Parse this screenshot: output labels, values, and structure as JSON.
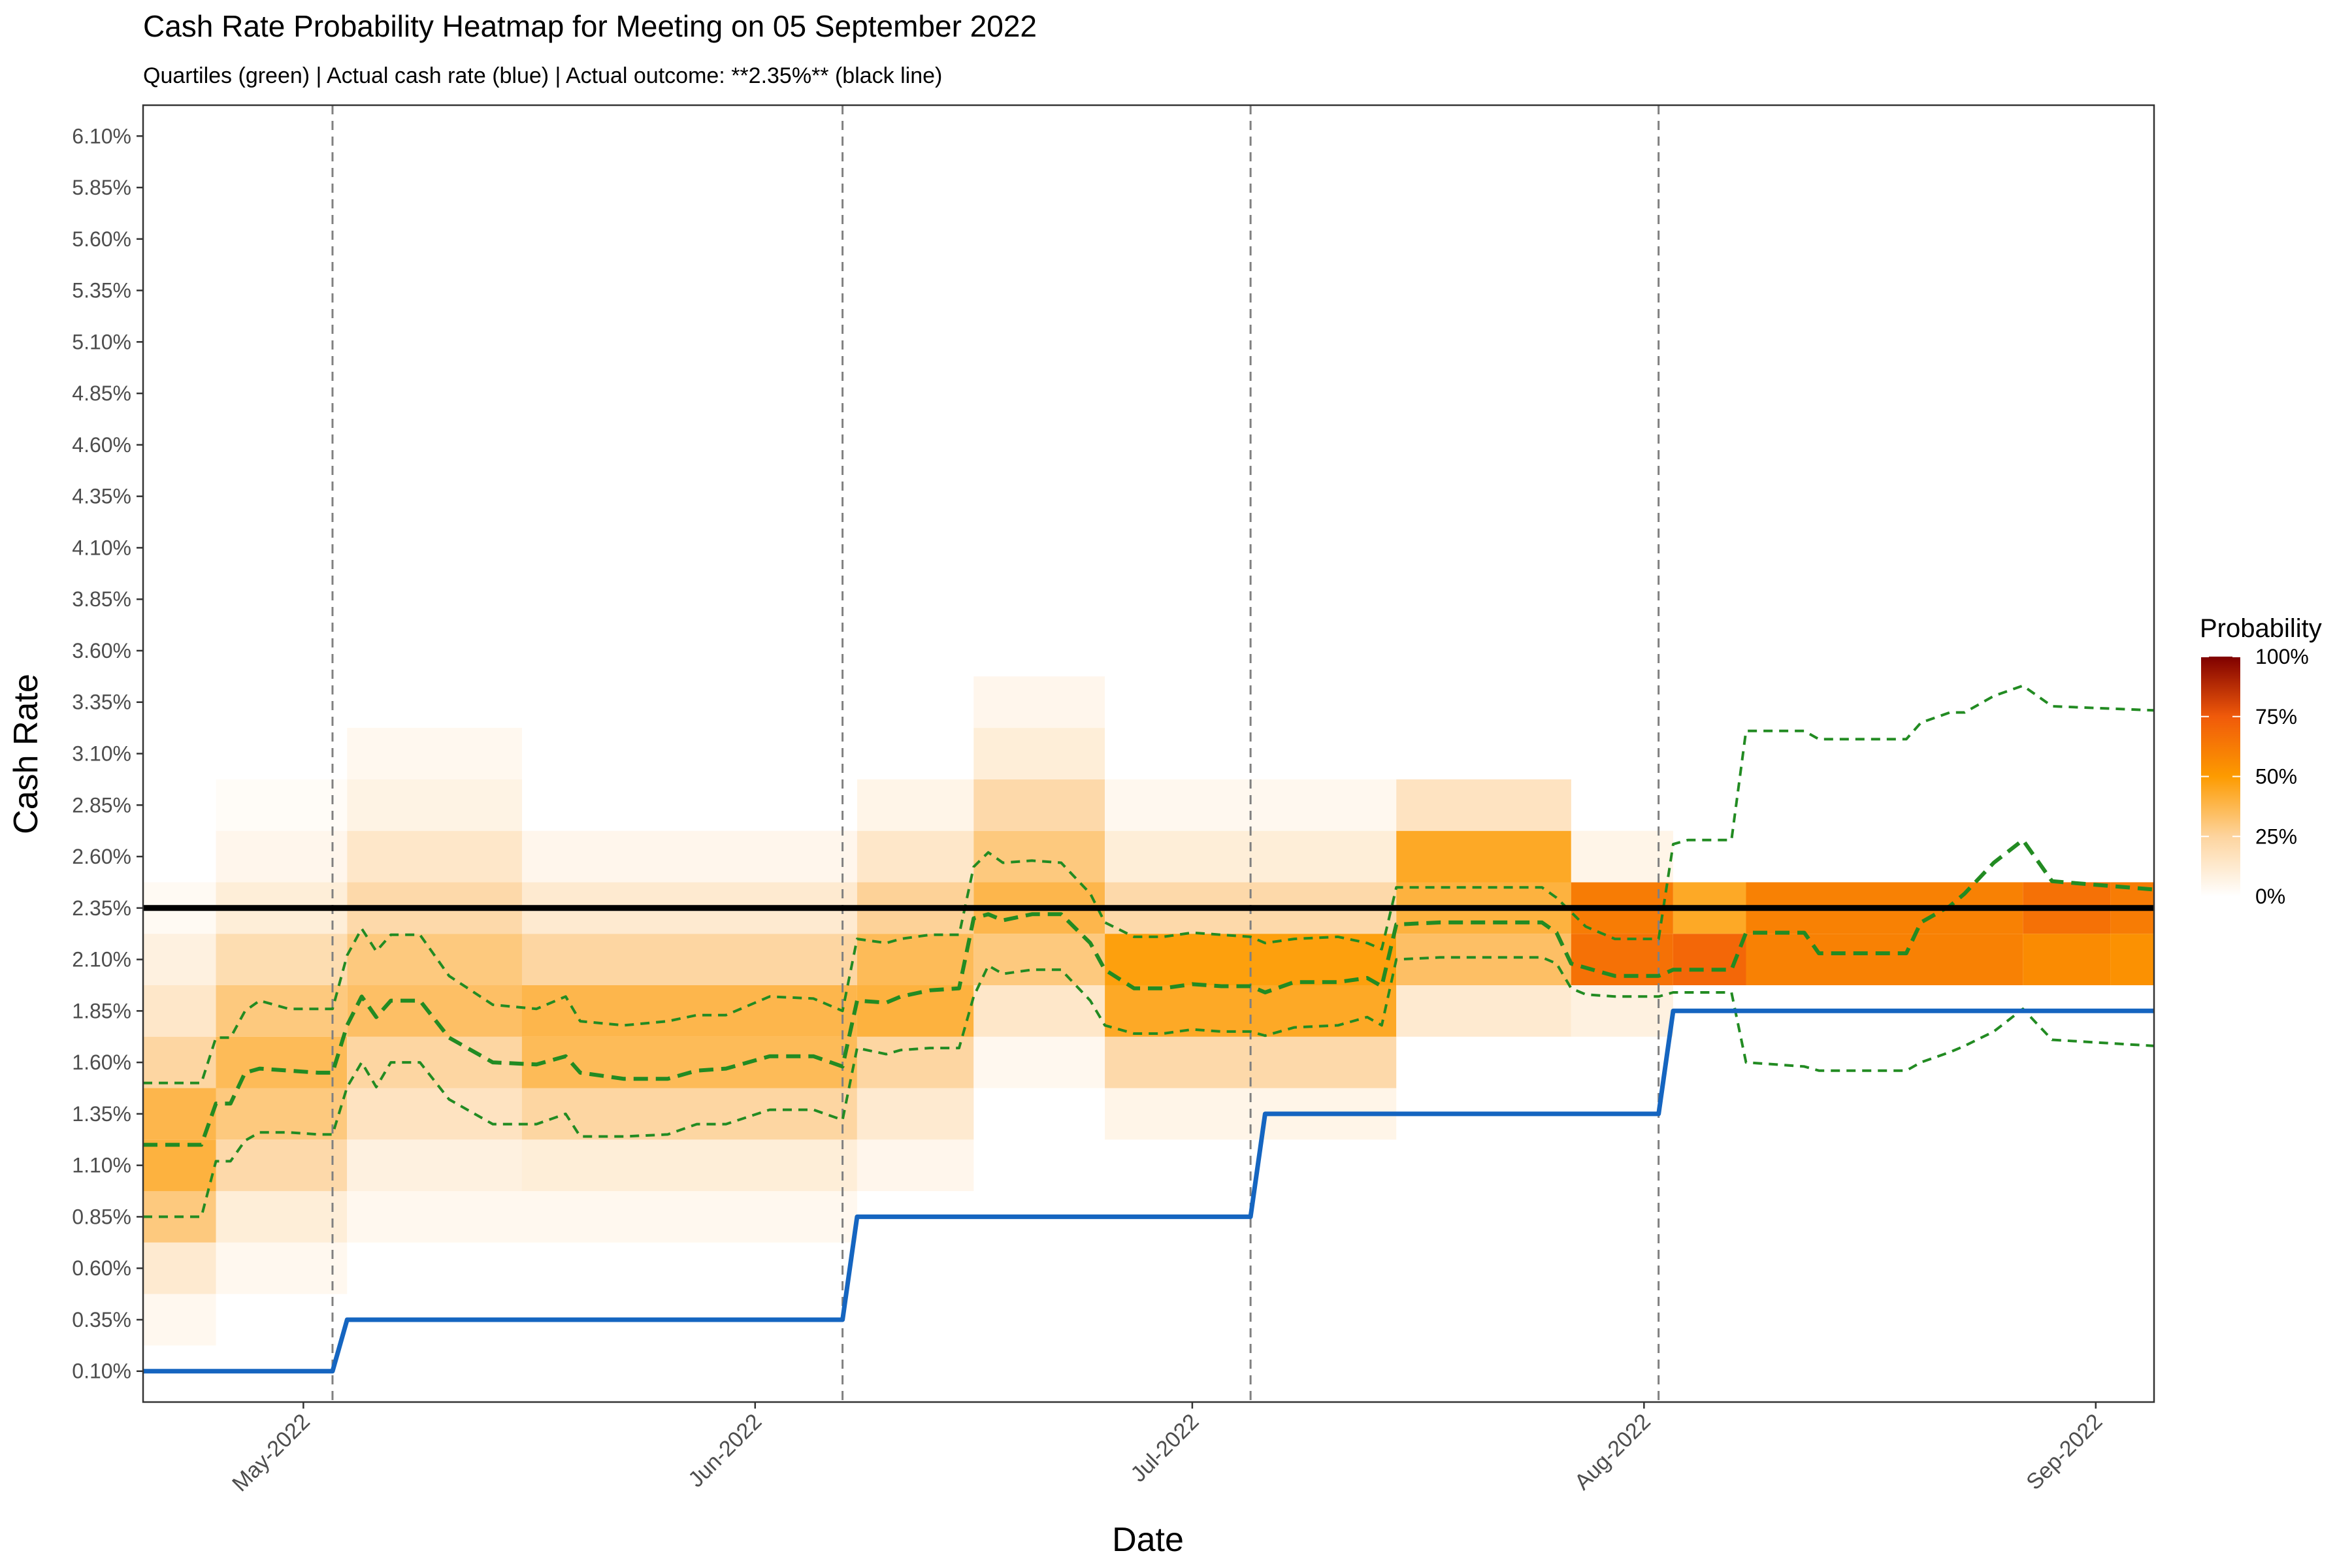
{
  "chart_data": {
    "type": "heatmap",
    "title": "Cash Rate Probability Heatmap for Meeting on 05 September 2022",
    "subtitle": "Quartiles (green) | Actual cash rate (blue) | Actual outcome: **2.35%** (black line)",
    "xlabel": "Date",
    "ylabel": "Cash Rate",
    "x_range": [
      "2022-04-20",
      "2022-09-05"
    ],
    "y_range": [
      -0.05,
      6.25
    ],
    "x_ticks": [
      "2022-05-01",
      "2022-06-01",
      "2022-07-01",
      "2022-08-01",
      "2022-09-01"
    ],
    "x_tick_labels": [
      "May-2022",
      "Jun-2022",
      "Jul-2022",
      "Aug-2022",
      "Sep-2022"
    ],
    "y_ticks": [
      0.1,
      0.35,
      0.6,
      0.85,
      1.1,
      1.35,
      1.6,
      1.85,
      2.1,
      2.35,
      2.6,
      2.85,
      3.1,
      3.35,
      3.6,
      3.85,
      4.1,
      4.35,
      4.6,
      4.85,
      5.1,
      5.35,
      5.6,
      5.85,
      6.1
    ],
    "y_tick_labels": [
      "0.10%",
      "0.35%",
      "0.60%",
      "0.85%",
      "1.10%",
      "1.35%",
      "1.60%",
      "1.85%",
      "2.10%",
      "2.35%",
      "2.60%",
      "2.85%",
      "3.10%",
      "3.35%",
      "3.60%",
      "3.85%",
      "4.10%",
      "4.35%",
      "4.60%",
      "4.85%",
      "5.10%",
      "5.35%",
      "5.60%",
      "5.85%",
      "6.10%"
    ],
    "grid": false,
    "meeting_dates": [
      "2022-05-03",
      "2022-06-07",
      "2022-07-05",
      "2022-08-02"
    ],
    "actual_outcome": 2.35,
    "actual_cash_rate": [
      {
        "date": "2022-04-20",
        "rate": 0.1
      },
      {
        "date": "2022-05-03",
        "rate": 0.1
      },
      {
        "date": "2022-05-04",
        "rate": 0.35
      },
      {
        "date": "2022-06-07",
        "rate": 0.35
      },
      {
        "date": "2022-06-08",
        "rate": 0.85
      },
      {
        "date": "2022-07-05",
        "rate": 0.85
      },
      {
        "date": "2022-07-06",
        "rate": 1.35
      },
      {
        "date": "2022-08-02",
        "rate": 1.35
      },
      {
        "date": "2022-08-03",
        "rate": 1.85
      },
      {
        "date": "2022-09-05",
        "rate": 1.85
      }
    ],
    "quartiles": [
      {
        "date": "2022-04-20",
        "q25": 0.85,
        "median": 1.2,
        "q75": 1.5
      },
      {
        "date": "2022-04-24",
        "q25": 0.85,
        "median": 1.2,
        "q75": 1.5
      },
      {
        "date": "2022-04-25",
        "q25": 1.12,
        "median": 1.4,
        "q75": 1.72
      },
      {
        "date": "2022-04-26",
        "q25": 1.12,
        "median": 1.4,
        "q75": 1.72
      },
      {
        "date": "2022-04-27",
        "q25": 1.22,
        "median": 1.55,
        "q75": 1.85
      },
      {
        "date": "2022-04-28",
        "q25": 1.26,
        "median": 1.57,
        "q75": 1.9
      },
      {
        "date": "2022-04-30",
        "q25": 1.26,
        "median": 1.56,
        "q75": 1.86
      },
      {
        "date": "2022-05-02",
        "q25": 1.25,
        "median": 1.55,
        "q75": 1.86
      },
      {
        "date": "2022-05-03",
        "q25": 1.25,
        "median": 1.55,
        "q75": 1.86
      },
      {
        "date": "2022-05-04",
        "q25": 1.48,
        "median": 1.78,
        "q75": 2.12
      },
      {
        "date": "2022-05-05",
        "q25": 1.6,
        "median": 1.92,
        "q75": 2.25
      },
      {
        "date": "2022-05-06",
        "q25": 1.48,
        "median": 1.82,
        "q75": 2.14
      },
      {
        "date": "2022-05-07",
        "q25": 1.6,
        "median": 1.9,
        "q75": 2.22
      },
      {
        "date": "2022-05-09",
        "q25": 1.6,
        "median": 1.9,
        "q75": 2.22
      },
      {
        "date": "2022-05-11",
        "q25": 1.42,
        "median": 1.72,
        "q75": 2.02
      },
      {
        "date": "2022-05-14",
        "q25": 1.3,
        "median": 1.6,
        "q75": 1.88
      },
      {
        "date": "2022-05-17",
        "q25": 1.3,
        "median": 1.59,
        "q75": 1.86
      },
      {
        "date": "2022-05-19",
        "q25": 1.35,
        "median": 1.63,
        "q75": 1.92
      },
      {
        "date": "2022-05-20",
        "q25": 1.24,
        "median": 1.55,
        "q75": 1.8
      },
      {
        "date": "2022-05-23",
        "q25": 1.24,
        "median": 1.52,
        "q75": 1.78
      },
      {
        "date": "2022-05-26",
        "q25": 1.25,
        "median": 1.52,
        "q75": 1.8
      },
      {
        "date": "2022-05-28",
        "q25": 1.3,
        "median": 1.56,
        "q75": 1.83
      },
      {
        "date": "2022-05-30",
        "q25": 1.3,
        "median": 1.57,
        "q75": 1.83
      },
      {
        "date": "2022-06-02",
        "q25": 1.37,
        "median": 1.63,
        "q75": 1.92
      },
      {
        "date": "2022-06-05",
        "q25": 1.37,
        "median": 1.63,
        "q75": 1.91
      },
      {
        "date": "2022-06-07",
        "q25": 1.32,
        "median": 1.58,
        "q75": 1.85
      },
      {
        "date": "2022-06-08",
        "q25": 1.67,
        "median": 1.9,
        "q75": 2.2
      },
      {
        "date": "2022-06-10",
        "q25": 1.64,
        "median": 1.89,
        "q75": 2.18
      },
      {
        "date": "2022-06-11",
        "q25": 1.66,
        "median": 1.92,
        "q75": 2.2
      },
      {
        "date": "2022-06-13",
        "q25": 1.67,
        "median": 1.95,
        "q75": 2.22
      },
      {
        "date": "2022-06-15",
        "q25": 1.67,
        "median": 1.96,
        "q75": 2.22
      },
      {
        "date": "2022-06-16",
        "q25": 1.92,
        "median": 2.3,
        "q75": 2.55
      },
      {
        "date": "2022-06-17",
        "q25": 2.07,
        "median": 2.32,
        "q75": 2.62
      },
      {
        "date": "2022-06-18",
        "q25": 2.03,
        "median": 2.29,
        "q75": 2.57
      },
      {
        "date": "2022-06-20",
        "q25": 2.05,
        "median": 2.32,
        "q75": 2.58
      },
      {
        "date": "2022-06-22",
        "q25": 2.05,
        "median": 2.32,
        "q75": 2.57
      },
      {
        "date": "2022-06-24",
        "q25": 1.9,
        "median": 2.18,
        "q75": 2.42
      },
      {
        "date": "2022-06-25",
        "q25": 1.78,
        "median": 2.05,
        "q75": 2.28
      },
      {
        "date": "2022-06-27",
        "q25": 1.74,
        "median": 1.96,
        "q75": 2.21
      },
      {
        "date": "2022-06-29",
        "q25": 1.74,
        "median": 1.96,
        "q75": 2.21
      },
      {
        "date": "2022-07-01",
        "q25": 1.76,
        "median": 1.98,
        "q75": 2.23
      },
      {
        "date": "2022-07-03",
        "q25": 1.75,
        "median": 1.97,
        "q75": 2.22
      },
      {
        "date": "2022-07-05",
        "q25": 1.75,
        "median": 1.97,
        "q75": 2.21
      },
      {
        "date": "2022-07-06",
        "q25": 1.73,
        "median": 1.94,
        "q75": 2.18
      },
      {
        "date": "2022-07-08",
        "q25": 1.77,
        "median": 1.99,
        "q75": 2.2
      },
      {
        "date": "2022-07-11",
        "q25": 1.78,
        "median": 1.99,
        "q75": 2.21
      },
      {
        "date": "2022-07-13",
        "q25": 1.82,
        "median": 2.01,
        "q75": 2.18
      },
      {
        "date": "2022-07-14",
        "q25": 1.78,
        "median": 1.97,
        "q75": 2.15
      },
      {
        "date": "2022-07-15",
        "q25": 2.1,
        "median": 2.27,
        "q75": 2.45
      },
      {
        "date": "2022-07-18",
        "q25": 2.11,
        "median": 2.28,
        "q75": 2.45
      },
      {
        "date": "2022-07-22",
        "q25": 2.11,
        "median": 2.28,
        "q75": 2.45
      },
      {
        "date": "2022-07-25",
        "q25": 2.11,
        "median": 2.28,
        "q75": 2.45
      },
      {
        "date": "2022-07-26",
        "q25": 2.08,
        "median": 2.23,
        "q75": 2.4
      },
      {
        "date": "2022-07-27",
        "q25": 1.96,
        "median": 2.08,
        "q75": 2.33
      },
      {
        "date": "2022-07-28",
        "q25": 1.93,
        "median": 2.06,
        "q75": 2.26
      },
      {
        "date": "2022-07-30",
        "q25": 1.92,
        "median": 2.02,
        "q75": 2.2
      },
      {
        "date": "2022-08-01",
        "q25": 1.92,
        "median": 2.02,
        "q75": 2.2
      },
      {
        "date": "2022-08-02",
        "q25": 1.92,
        "median": 2.02,
        "q75": 2.2
      },
      {
        "date": "2022-08-03",
        "q25": 1.94,
        "median": 2.05,
        "q75": 2.66
      },
      {
        "date": "2022-08-04",
        "q25": 1.94,
        "median": 2.05,
        "q75": 2.68
      },
      {
        "date": "2022-08-07",
        "q25": 1.94,
        "median": 2.05,
        "q75": 2.68
      },
      {
        "date": "2022-08-08",
        "q25": 1.6,
        "median": 2.23,
        "q75": 3.21
      },
      {
        "date": "2022-08-12",
        "q25": 1.58,
        "median": 2.23,
        "q75": 3.21
      },
      {
        "date": "2022-08-13",
        "q25": 1.56,
        "median": 2.13,
        "q75": 3.17
      },
      {
        "date": "2022-08-19",
        "q25": 1.56,
        "median": 2.13,
        "q75": 3.17
      },
      {
        "date": "2022-08-20",
        "q25": 1.6,
        "median": 2.28,
        "q75": 3.25
      },
      {
        "date": "2022-08-22",
        "q25": 1.65,
        "median": 2.36,
        "q75": 3.3
      },
      {
        "date": "2022-08-23",
        "q25": 1.68,
        "median": 2.42,
        "q75": 3.3
      },
      {
        "date": "2022-08-25",
        "q25": 1.75,
        "median": 2.57,
        "q75": 3.38
      },
      {
        "date": "2022-08-27",
        "q25": 1.86,
        "median": 2.68,
        "q75": 3.43
      },
      {
        "date": "2022-08-29",
        "q25": 1.71,
        "median": 2.48,
        "q75": 3.33
      },
      {
        "date": "2022-09-05",
        "q25": 1.68,
        "median": 2.44,
        "q75": 3.31
      }
    ],
    "heatmap_segments": [
      {
        "start": "2022-04-20",
        "end": "2022-04-24",
        "bins": [
          [
            0.35,
            0.04
          ],
          [
            0.6,
            0.12
          ],
          [
            0.85,
            0.3
          ],
          [
            1.1,
            0.4
          ],
          [
            1.35,
            0.38
          ],
          [
            1.6,
            0.24
          ],
          [
            1.85,
            0.14
          ],
          [
            2.1,
            0.08
          ],
          [
            2.35,
            0.03
          ]
        ]
      },
      {
        "start": "2022-04-25",
        "end": "2022-05-03",
        "bins": [
          [
            0.6,
            0.04
          ],
          [
            0.85,
            0.1
          ],
          [
            1.1,
            0.22
          ],
          [
            1.35,
            0.3
          ],
          [
            1.6,
            0.36
          ],
          [
            1.85,
            0.3
          ],
          [
            2.1,
            0.2
          ],
          [
            2.35,
            0.1
          ],
          [
            2.6,
            0.05
          ],
          [
            2.85,
            0.02
          ]
        ]
      },
      {
        "start": "2022-05-04",
        "end": "2022-05-15",
        "bins": [
          [
            0.85,
            0.04
          ],
          [
            1.1,
            0.08
          ],
          [
            1.35,
            0.16
          ],
          [
            1.6,
            0.24
          ],
          [
            1.85,
            0.34
          ],
          [
            2.1,
            0.3
          ],
          [
            2.35,
            0.22
          ],
          [
            2.6,
            0.14
          ],
          [
            2.85,
            0.07
          ],
          [
            3.1,
            0.04
          ]
        ]
      },
      {
        "start": "2022-05-16",
        "end": "2022-06-07",
        "bins": [
          [
            0.85,
            0.04
          ],
          [
            1.1,
            0.1
          ],
          [
            1.35,
            0.24
          ],
          [
            1.6,
            0.36
          ],
          [
            1.85,
            0.38
          ],
          [
            2.1,
            0.24
          ],
          [
            2.35,
            0.12
          ],
          [
            2.6,
            0.05
          ]
        ]
      },
      {
        "start": "2022-06-08",
        "end": "2022-06-15",
        "bins": [
          [
            1.1,
            0.05
          ],
          [
            1.35,
            0.12
          ],
          [
            1.6,
            0.24
          ],
          [
            1.85,
            0.4
          ],
          [
            2.1,
            0.36
          ],
          [
            2.35,
            0.26
          ],
          [
            2.6,
            0.14
          ],
          [
            2.85,
            0.06
          ]
        ]
      },
      {
        "start": "2022-06-16",
        "end": "2022-06-24",
        "bins": [
          [
            1.6,
            0.04
          ],
          [
            1.85,
            0.14
          ],
          [
            2.1,
            0.3
          ],
          [
            2.35,
            0.38
          ],
          [
            2.6,
            0.3
          ],
          [
            2.85,
            0.22
          ],
          [
            3.1,
            0.1
          ],
          [
            3.35,
            0.05
          ]
        ]
      },
      {
        "start": "2022-06-25",
        "end": "2022-07-14",
        "bins": [
          [
            1.35,
            0.06
          ],
          [
            1.6,
            0.22
          ],
          [
            1.85,
            0.44
          ],
          [
            2.1,
            0.48
          ],
          [
            2.35,
            0.22
          ],
          [
            2.6,
            0.1
          ],
          [
            2.85,
            0.04
          ]
        ]
      },
      {
        "start": "2022-07-15",
        "end": "2022-07-26",
        "bins": [
          [
            1.85,
            0.12
          ],
          [
            2.1,
            0.34
          ],
          [
            2.35,
            0.4
          ],
          [
            2.6,
            0.44
          ],
          [
            2.85,
            0.16
          ]
        ]
      },
      {
        "start": "2022-07-27",
        "end": "2022-08-02",
        "bins": [
          [
            1.85,
            0.08
          ],
          [
            2.1,
            0.66
          ],
          [
            2.35,
            0.62
          ],
          [
            2.6,
            0.06
          ]
        ]
      },
      {
        "start": "2022-08-03",
        "end": "2022-08-07",
        "bins": [
          [
            2.1,
            0.7
          ],
          [
            2.35,
            0.44
          ]
        ]
      },
      {
        "start": "2022-08-08",
        "end": "2022-08-26",
        "bins": [
          [
            2.1,
            0.6
          ],
          [
            2.35,
            0.6
          ]
        ]
      },
      {
        "start": "2022-08-27",
        "end": "2022-09-01",
        "bins": [
          [
            2.1,
            0.56
          ],
          [
            2.35,
            0.66
          ]
        ]
      },
      {
        "start": "2022-09-02",
        "end": "2022-09-05",
        "bins": [
          [
            2.1,
            0.54
          ],
          [
            2.35,
            0.62
          ]
        ]
      }
    ],
    "legend": {
      "title": "Probability",
      "placement": "right",
      "breaks": [
        0,
        0.25,
        0.5,
        0.75,
        1.0
      ],
      "labels": [
        "0%",
        "25%",
        "50%",
        "75%",
        "100%"
      ],
      "colors": [
        "#ffffff",
        "#fdd49e",
        "#fd9b00",
        "#f05a0a",
        "#7f0000"
      ]
    },
    "colors": {
      "actual_cash_rate": "#1565c0",
      "actual_outcome": "#000000",
      "quartiles": "#228b22",
      "meeting_lines": "#808080"
    }
  }
}
